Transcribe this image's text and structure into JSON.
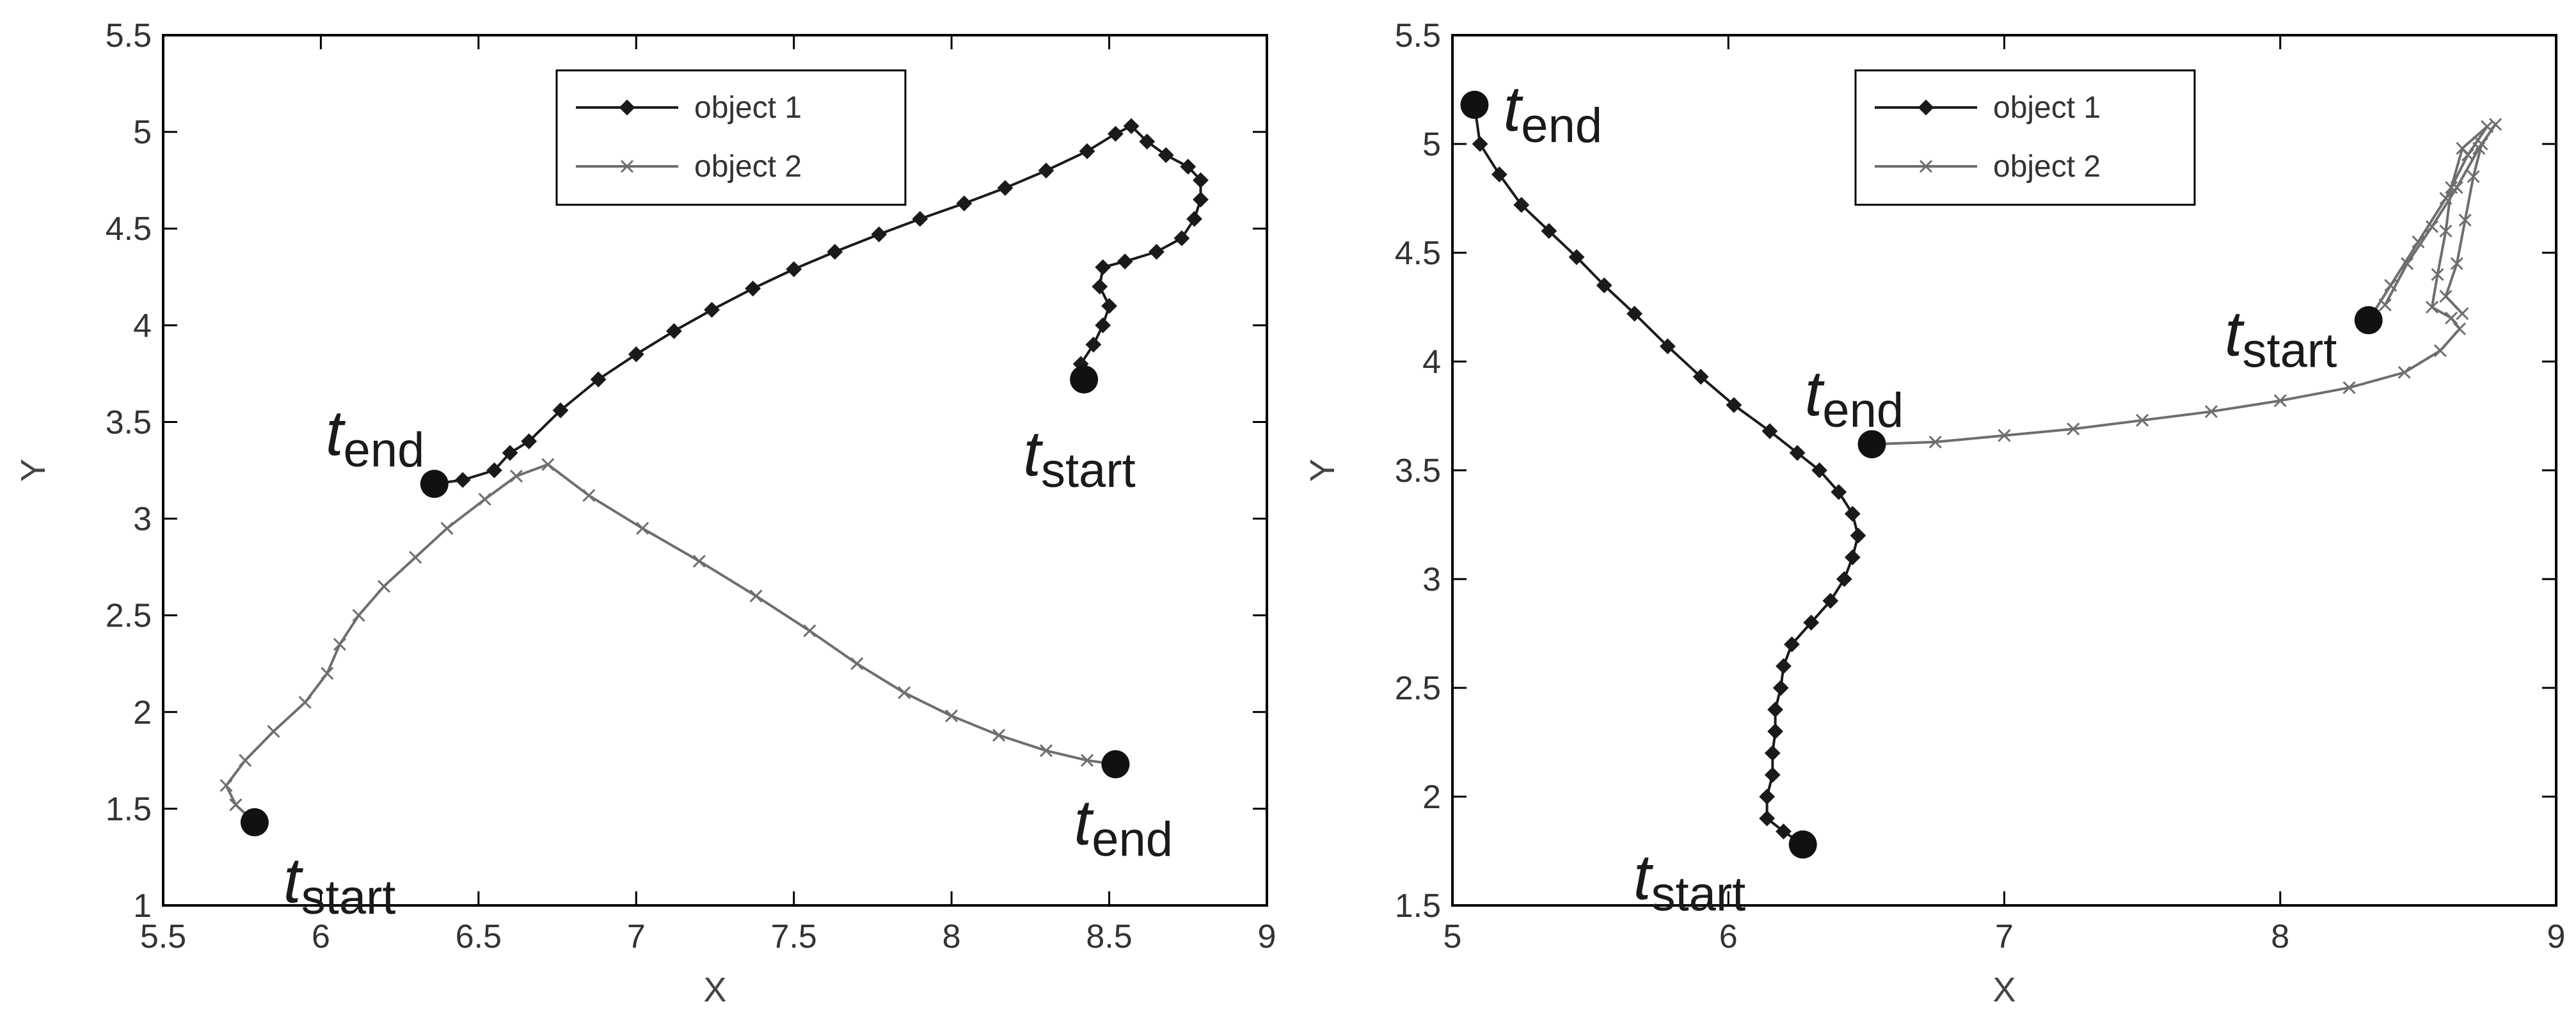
{
  "colors": {
    "object1": "#1a1a1a",
    "object2": "#6e6e6e",
    "marker": "#111111",
    "axis": "#000000"
  },
  "chart_data": [
    {
      "type": "line",
      "title": "",
      "xlabel": "X",
      "ylabel": "Y",
      "xlim": [
        5.5,
        9
      ],
      "ylim": [
        1,
        5.5
      ],
      "xticks": [
        5.5,
        6,
        6.5,
        7,
        7.5,
        8,
        8.5,
        9
      ],
      "yticks": [
        1,
        1.5,
        2,
        2.5,
        3,
        3.5,
        4,
        4.5,
        5,
        5.5
      ],
      "xtick_labels": [
        "5.5",
        "6",
        "6.5",
        "7",
        "7.5",
        "8",
        "8.5",
        "9"
      ],
      "ytick_labels": [
        "1",
        "1.5",
        "2",
        "2.5",
        "3",
        "3.5",
        "4",
        "4.5",
        "5",
        "5.5"
      ],
      "grid": false,
      "legend_position": "top-center",
      "series": [
        {
          "name": "object 1",
          "marker": "diamond",
          "points": [
            [
              8.41,
              3.72
            ],
            [
              8.41,
              3.8
            ],
            [
              8.45,
              3.9
            ],
            [
              8.48,
              4.0
            ],
            [
              8.5,
              4.1
            ],
            [
              8.47,
              4.2
            ],
            [
              8.48,
              4.3
            ],
            [
              8.55,
              4.33
            ],
            [
              8.65,
              4.38
            ],
            [
              8.73,
              4.45
            ],
            [
              8.77,
              4.55
            ],
            [
              8.79,
              4.65
            ],
            [
              8.79,
              4.75
            ],
            [
              8.75,
              4.82
            ],
            [
              8.68,
              4.88
            ],
            [
              8.62,
              4.95
            ],
            [
              8.57,
              5.03
            ],
            [
              8.52,
              4.99
            ],
            [
              8.43,
              4.9
            ],
            [
              8.3,
              4.8
            ],
            [
              8.17,
              4.71
            ],
            [
              8.04,
              4.63
            ],
            [
              7.9,
              4.55
            ],
            [
              7.77,
              4.47
            ],
            [
              7.63,
              4.38
            ],
            [
              7.5,
              4.29
            ],
            [
              7.37,
              4.19
            ],
            [
              7.24,
              4.08
            ],
            [
              7.12,
              3.97
            ],
            [
              7.0,
              3.85
            ],
            [
              6.88,
              3.72
            ],
            [
              6.76,
              3.56
            ],
            [
              6.66,
              3.4
            ],
            [
              6.6,
              3.34
            ],
            [
              6.55,
              3.25
            ],
            [
              6.45,
              3.2
            ],
            [
              6.36,
              3.18
            ]
          ]
        },
        {
          "name": "object 2",
          "marker": "x",
          "points": [
            [
              5.79,
              1.43
            ],
            [
              5.73,
              1.52
            ],
            [
              5.7,
              1.62
            ],
            [
              5.76,
              1.75
            ],
            [
              5.85,
              1.9
            ],
            [
              5.95,
              2.05
            ],
            [
              6.02,
              2.2
            ],
            [
              6.06,
              2.35
            ],
            [
              6.12,
              2.5
            ],
            [
              6.2,
              2.65
            ],
            [
              6.3,
              2.8
            ],
            [
              6.4,
              2.95
            ],
            [
              6.52,
              3.1
            ],
            [
              6.62,
              3.22
            ],
            [
              6.72,
              3.28
            ],
            [
              6.85,
              3.12
            ],
            [
              7.02,
              2.95
            ],
            [
              7.2,
              2.78
            ],
            [
              7.38,
              2.6
            ],
            [
              7.55,
              2.42
            ],
            [
              7.7,
              2.25
            ],
            [
              7.85,
              2.1
            ],
            [
              8.0,
              1.98
            ],
            [
              8.15,
              1.88
            ],
            [
              8.3,
              1.8
            ],
            [
              8.43,
              1.75
            ],
            [
              8.52,
              1.73
            ]
          ]
        }
      ],
      "annotations": [
        {
          "t": "t",
          "sub": "start",
          "x": 8.42,
          "y": 3.72
        },
        {
          "t": "t",
          "sub": "end",
          "x": 6.36,
          "y": 3.18
        },
        {
          "t": "t",
          "sub": "start",
          "x": 5.79,
          "y": 1.43
        },
        {
          "t": "t",
          "sub": "end",
          "x": 8.52,
          "y": 1.73
        }
      ]
    },
    {
      "type": "line",
      "title": "",
      "xlabel": "X",
      "ylabel": "Y",
      "xlim": [
        5,
        9
      ],
      "ylim": [
        1.5,
        5.5
      ],
      "xticks": [
        5,
        6,
        7,
        8,
        9
      ],
      "yticks": [
        1.5,
        2,
        2.5,
        3,
        3.5,
        4,
        4.5,
        5,
        5.5
      ],
      "xtick_labels": [
        "5",
        "6",
        "7",
        "8",
        "9"
      ],
      "ytick_labels": [
        "1.5",
        "2",
        "2.5",
        "3",
        "3.5",
        "4",
        "4.5",
        "5",
        "5.5"
      ],
      "grid": false,
      "legend_position": "top-center",
      "series": [
        {
          "name": "object 1",
          "marker": "diamond",
          "points": [
            [
              6.27,
              1.78
            ],
            [
              6.2,
              1.84
            ],
            [
              6.14,
              1.9
            ],
            [
              6.14,
              2.0
            ],
            [
              6.16,
              2.1
            ],
            [
              6.16,
              2.2
            ],
            [
              6.17,
              2.3
            ],
            [
              6.17,
              2.4
            ],
            [
              6.19,
              2.5
            ],
            [
              6.2,
              2.6
            ],
            [
              6.23,
              2.7
            ],
            [
              6.3,
              2.8
            ],
            [
              6.37,
              2.9
            ],
            [
              6.42,
              3.0
            ],
            [
              6.45,
              3.1
            ],
            [
              6.47,
              3.2
            ],
            [
              6.45,
              3.3
            ],
            [
              6.4,
              3.4
            ],
            [
              6.33,
              3.5
            ],
            [
              6.25,
              3.58
            ],
            [
              6.15,
              3.68
            ],
            [
              6.02,
              3.8
            ],
            [
              5.9,
              3.93
            ],
            [
              5.78,
              4.07
            ],
            [
              5.66,
              4.22
            ],
            [
              5.55,
              4.35
            ],
            [
              5.45,
              4.48
            ],
            [
              5.35,
              4.6
            ],
            [
              5.25,
              4.72
            ],
            [
              5.17,
              4.86
            ],
            [
              5.1,
              5.0
            ],
            [
              5.08,
              5.18
            ]
          ]
        },
        {
          "name": "object 2",
          "marker": "x",
          "points": [
            [
              8.32,
              4.19
            ],
            [
              8.4,
              4.35
            ],
            [
              8.5,
              4.55
            ],
            [
              8.6,
              4.75
            ],
            [
              8.68,
              4.95
            ],
            [
              8.75,
              5.08
            ],
            [
              8.66,
              4.98
            ],
            [
              8.62,
              4.8
            ],
            [
              8.6,
              4.6
            ],
            [
              8.57,
              4.4
            ],
            [
              8.55,
              4.25
            ],
            [
              8.62,
              4.2
            ],
            [
              8.65,
              4.15
            ],
            [
              8.58,
              4.05
            ],
            [
              8.45,
              3.95
            ],
            [
              8.25,
              3.88
            ],
            [
              8.0,
              3.82
            ],
            [
              7.75,
              3.77
            ],
            [
              7.5,
              3.73
            ],
            [
              7.25,
              3.69
            ],
            [
              7.0,
              3.66
            ],
            [
              6.75,
              3.63
            ],
            [
              6.52,
              3.62
            ]
          ]
        },
        {
          "name": "object 2",
          "marker": "x",
          "points": [
            [
              8.38,
              4.26
            ],
            [
              8.46,
              4.45
            ],
            [
              8.55,
              4.62
            ],
            [
              8.64,
              4.8
            ],
            [
              8.72,
              4.98
            ],
            [
              8.78,
              5.09
            ],
            [
              8.73,
              5.0
            ],
            [
              8.7,
              4.85
            ],
            [
              8.67,
              4.65
            ],
            [
              8.64,
              4.45
            ],
            [
              8.6,
              4.3
            ],
            [
              8.66,
              4.22
            ]
          ]
        }
      ],
      "annotations": [
        {
          "t": "t",
          "sub": "end",
          "x": 5.08,
          "y": 5.18
        },
        {
          "t": "t",
          "sub": "start",
          "x": 8.32,
          "y": 4.19
        },
        {
          "t": "t",
          "sub": "end",
          "x": 6.52,
          "y": 3.62
        },
        {
          "t": "t",
          "sub": "start",
          "x": 6.27,
          "y": 1.78
        }
      ]
    }
  ]
}
